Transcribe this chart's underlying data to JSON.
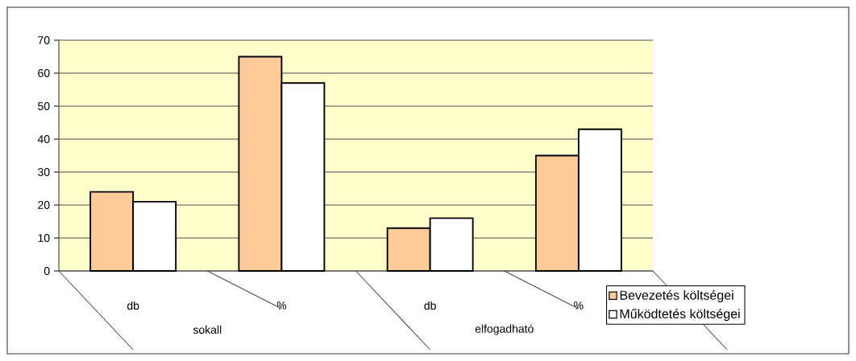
{
  "chart_data": {
    "type": "bar",
    "categories": [
      "db",
      "%",
      "db",
      "%"
    ],
    "series": [
      {
        "name": "Bevezetés költségei",
        "color": "#ffcc99",
        "values": [
          24,
          65,
          13,
          35
        ]
      },
      {
        "name": "Működtetés költségei",
        "color": "#ffffff",
        "values": [
          21,
          57,
          16,
          43
        ]
      }
    ],
    "annotations": [
      "sokall",
      "elfogadható"
    ],
    "ylim": [
      0,
      70
    ],
    "yticks": [
      0,
      10,
      20,
      30,
      40,
      50,
      60,
      70
    ],
    "grid": "y",
    "legend": "bottom right"
  }
}
